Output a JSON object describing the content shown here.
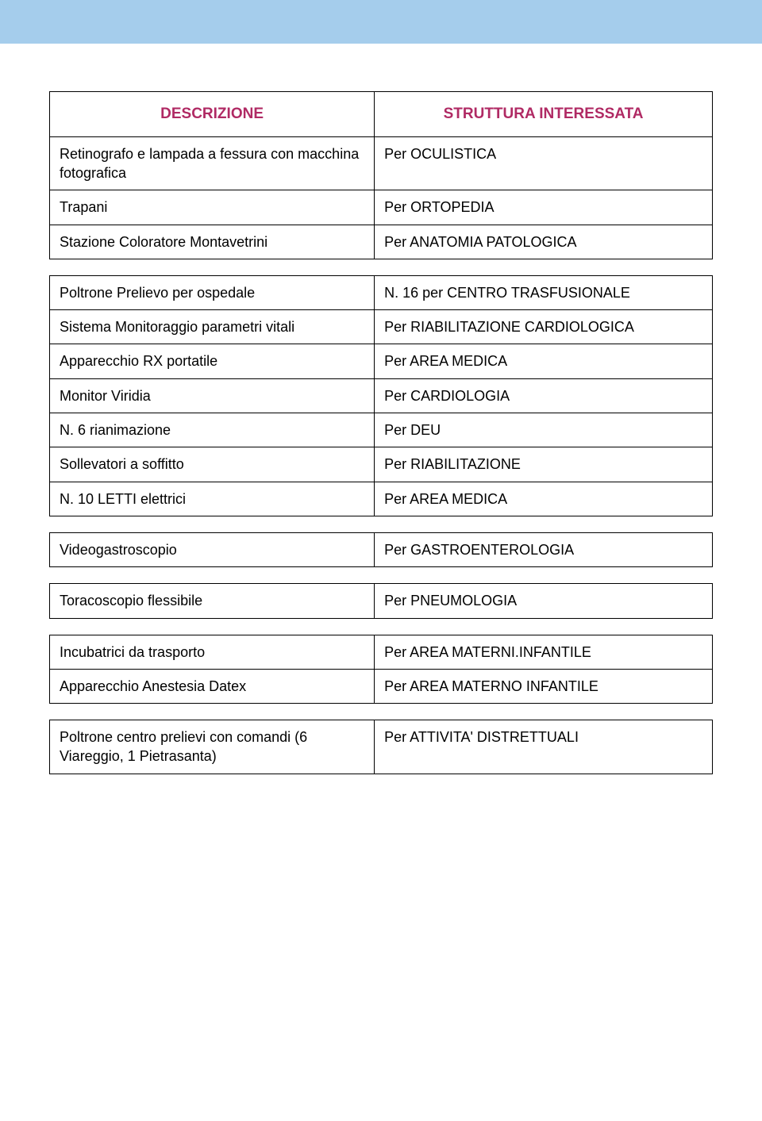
{
  "colors": {
    "top_bar": "#a5cdec",
    "header_text": "#b02a64",
    "body_text": "#000000",
    "border": "#000000",
    "background": "#ffffff"
  },
  "typography": {
    "header_fontsize": 19,
    "header_fontweight": "bold",
    "cell_fontsize": 18,
    "font_family": "Arial, Helvetica, sans-serif"
  },
  "table1": {
    "header": {
      "left": "DESCRIZIONE",
      "right": "STRUTTURA INTERESSATA"
    },
    "rows": [
      {
        "left": "Retinografo e lampada a fessura con macchina fotografica",
        "right": "Per OCULISTICA"
      },
      {
        "left": "Trapani",
        "right": "Per ORTOPEDIA"
      },
      {
        "left": "Stazione Coloratore Montavetrini",
        "right": "Per ANATOMIA PATOLOGICA"
      }
    ]
  },
  "table2": {
    "rows": [
      {
        "left": "Poltrone Prelievo per ospedale",
        "right": "N. 16 per CENTRO TRASFUSIONALE"
      },
      {
        "left": "Sistema Monitoraggio parametri vitali",
        "right": "Per RIABILITAZIONE CARDIOLOGICA"
      },
      {
        "left": "Apparecchio  RX portatile",
        "right": "Per AREA MEDICA"
      },
      {
        "left": "Monitor Viridia",
        "right": "Per CARDIOLOGIA"
      },
      {
        "left": "N. 6  rianimazione",
        "right": "Per DEU"
      },
      {
        "left": "Sollevatori a soffitto",
        "right": "Per RIABILITAZIONE"
      },
      {
        "left": "N. 10 LETTI elettrici",
        "right": "Per AREA MEDICA"
      }
    ]
  },
  "table3": {
    "rows": [
      {
        "left": "Videogastroscopio",
        "right": "Per GASTROENTEROLOGIA"
      }
    ]
  },
  "table4": {
    "rows": [
      {
        "left": "Toracoscopio flessibile",
        "right": "Per PNEUMOLOGIA"
      }
    ]
  },
  "table5": {
    "rows": [
      {
        "left": "Incubatrici da trasporto",
        "right": "Per AREA MATERNI.INFANTILE"
      },
      {
        "left": "Apparecchio Anestesia Datex",
        "right": "Per AREA MATERNO INFANTILE"
      }
    ]
  },
  "table6": {
    "rows": [
      {
        "left": "Poltrone centro prelievi con comandi (6 Viareggio, 1 Pietrasanta)",
        "right": "Per ATTIVITA' DISTRETTUALI"
      }
    ]
  }
}
